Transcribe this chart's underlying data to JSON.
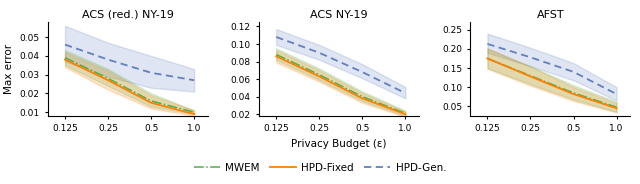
{
  "titles": [
    "ACS (red.) NY-19",
    "ACS NY-19",
    "AFST"
  ],
  "xlabel": "Privacy Budget (ε)",
  "ylabel": "Max error",
  "x_ticks": [
    0.125,
    0.25,
    0.5,
    1.0
  ],
  "x_tick_labels": [
    "0.125",
    "0.25",
    "0.5",
    "1.0"
  ],
  "plots": [
    {
      "ylim": [
        0.008,
        0.058
      ],
      "yticks": [
        0.01,
        0.02,
        0.03,
        0.04,
        0.05
      ],
      "mwem_mean": [
        0.039,
        0.028,
        0.016,
        0.01
      ],
      "mwem_lo": [
        0.035,
        0.024,
        0.013,
        0.009
      ],
      "mwem_hi": [
        0.043,
        0.033,
        0.02,
        0.011
      ],
      "hpd_fixed_mean": [
        0.038,
        0.027,
        0.015,
        0.009
      ],
      "hpd_fixed_lo": [
        0.034,
        0.022,
        0.012,
        0.008
      ],
      "hpd_fixed_hi": [
        0.042,
        0.032,
        0.019,
        0.011
      ],
      "hpd_gen_mean": [
        0.046,
        0.038,
        0.031,
        0.027
      ],
      "hpd_gen_lo": [
        0.037,
        0.029,
        0.023,
        0.021
      ],
      "hpd_gen_hi": [
        0.056,
        0.047,
        0.04,
        0.033
      ]
    },
    {
      "ylim": [
        0.018,
        0.125
      ],
      "yticks": [
        0.02,
        0.04,
        0.06,
        0.08,
        0.1,
        0.12
      ],
      "mwem_mean": [
        0.088,
        0.065,
        0.04,
        0.021
      ],
      "mwem_lo": [
        0.082,
        0.059,
        0.035,
        0.018
      ],
      "mwem_hi": [
        0.095,
        0.072,
        0.046,
        0.024
      ],
      "hpd_fixed_mean": [
        0.086,
        0.063,
        0.038,
        0.02
      ],
      "hpd_fixed_lo": [
        0.079,
        0.057,
        0.033,
        0.017
      ],
      "hpd_fixed_hi": [
        0.093,
        0.07,
        0.044,
        0.023
      ],
      "hpd_gen_mean": [
        0.108,
        0.09,
        0.068,
        0.044
      ],
      "hpd_gen_lo": [
        0.099,
        0.082,
        0.061,
        0.038
      ],
      "hpd_gen_hi": [
        0.117,
        0.099,
        0.077,
        0.051
      ]
    },
    {
      "ylim": [
        0.025,
        0.27
      ],
      "yticks": [
        0.05,
        0.1,
        0.15,
        0.2,
        0.25
      ],
      "mwem_mean": [
        0.175,
        0.13,
        0.085,
        0.048
      ],
      "mwem_lo": [
        0.15,
        0.108,
        0.068,
        0.036
      ],
      "mwem_hi": [
        0.2,
        0.155,
        0.105,
        0.062
      ],
      "hpd_fixed_mean": [
        0.175,
        0.128,
        0.082,
        0.045
      ],
      "hpd_fixed_lo": [
        0.148,
        0.104,
        0.064,
        0.034
      ],
      "hpd_fixed_hi": [
        0.202,
        0.153,
        0.1,
        0.058
      ],
      "hpd_gen_mean": [
        0.213,
        0.178,
        0.14,
        0.082
      ],
      "hpd_gen_lo": [
        0.19,
        0.155,
        0.118,
        0.065
      ],
      "hpd_gen_hi": [
        0.24,
        0.203,
        0.163,
        0.1
      ]
    }
  ],
  "colors": {
    "mwem": "#4daf4a",
    "hpd_fixed": "#ff7f00",
    "hpd_gen": "#6080c0"
  },
  "fill_alphas": {
    "mwem": 0.2,
    "hpd_fixed": 0.2,
    "hpd_gen": 0.2
  },
  "legend": {
    "mwem_label": "MWEM",
    "hpd_fixed_label": "HPD-Fixed",
    "hpd_gen_label": "HPD-Gen."
  }
}
